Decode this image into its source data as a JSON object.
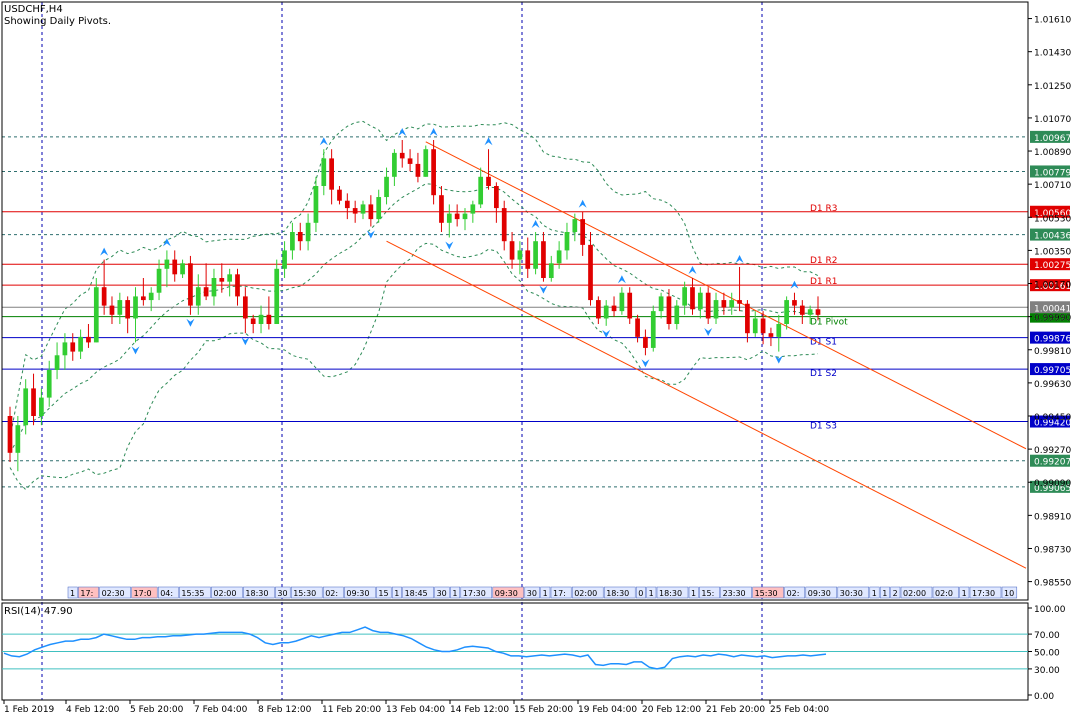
{
  "window": {
    "symbol_title": "USDCHF,H4",
    "subtitle": "Showing Daily Pivots."
  },
  "colors": {
    "background": "#ffffff",
    "axis": "#000000",
    "bull": "#32cd32",
    "bear": "#e00000",
    "resistance": "#e00000",
    "pivot": "#008000",
    "support": "#0000c8",
    "bollinger": "#2e8b57",
    "channel": "#ff4500",
    "fractal": "#1e90ff",
    "grid": "#0000b0",
    "rsi": "#1e90ff",
    "rsi_levels": "#40c0c0"
  },
  "chart_data": [
    {
      "type": "candlestick",
      "title": "USDCHF,H4",
      "ylim": [
        0.9845,
        1.017
      ],
      "y_ticks": [
        "1.01610",
        "1.01430",
        "1.01250",
        "1.01070",
        "1.00890",
        "1.00710",
        "1.00530",
        "1.00350",
        "1.00170",
        "0.99990",
        "0.99810",
        "0.99630",
        "0.99450",
        "0.99270",
        "0.99090",
        "0.98910",
        "0.98730",
        "0.98550"
      ],
      "x_ticks": [
        "1 Feb 2019",
        "4 Feb 12:00",
        "5 Feb 20:00",
        "7 Feb 04:00",
        "8 Feb 12:00",
        "11 Feb 20:00",
        "13 Feb 04:00",
        "14 Feb 12:00",
        "15 Feb 20:00",
        "19 Feb 04:00",
        "20 Feb 12:00",
        "21 Feb 20:00",
        "25 Feb 04:00"
      ],
      "grid": "dotted",
      "price_levels": [
        {
          "name": "D1 R3",
          "price": "1.00560",
          "kind": "resistance"
        },
        {
          "name": "D1 R2",
          "price": "1.00275",
          "kind": "resistance"
        },
        {
          "name": "D1 R1",
          "price": "1.00161",
          "kind": "resistance"
        },
        {
          "name": "D1 Pivot",
          "price": "0.99990",
          "kind": "pivot"
        },
        {
          "name": "D1 S1",
          "price": "0.99876",
          "kind": "support"
        },
        {
          "name": "D1 S2",
          "price": "0.99705",
          "kind": "support"
        },
        {
          "name": "D1 S3",
          "price": "0.99420",
          "kind": "support"
        }
      ],
      "other_levels": [
        "1.00967",
        "1.00779",
        "1.00436",
        "0.99207",
        "0.99065"
      ],
      "current_price": "1.00041",
      "ohlc": [
        [
          0.9945,
          0.995,
          0.992,
          0.9925
        ],
        [
          0.9925,
          0.9945,
          0.9915,
          0.994
        ],
        [
          0.994,
          0.9965,
          0.9935,
          0.996
        ],
        [
          0.996,
          0.9968,
          0.994,
          0.9945
        ],
        [
          0.9945,
          0.996,
          0.994,
          0.9955
        ],
        [
          0.9955,
          0.9975,
          0.995,
          0.997
        ],
        [
          0.997,
          0.9985,
          0.9965,
          0.9978
        ],
        [
          0.9978,
          0.999,
          0.997,
          0.9985
        ],
        [
          0.9985,
          0.999,
          0.9975,
          0.998
        ],
        [
          0.998,
          0.9992,
          0.9976,
          0.9988
        ],
        [
          0.9988,
          0.9995,
          0.9982,
          0.9985
        ],
        [
          0.9985,
          1.002,
          0.9985,
          1.0015
        ],
        [
          1.0015,
          1.003,
          1.0,
          1.0005
        ],
        [
          1.0005,
          1.001,
          0.9995,
          1.0
        ],
        [
          1.0,
          1.0012,
          0.9995,
          1.0008
        ],
        [
          1.0008,
          1.001,
          0.999,
          0.9998
        ],
        [
          0.9998,
          1.0015,
          0.9985,
          1.001
        ],
        [
          1.001,
          1.002,
          1.0005,
          1.0008
        ],
        [
          1.0008,
          1.0015,
          1.0002,
          1.0012
        ],
        [
          1.0012,
          1.003,
          1.0008,
          1.0025
        ],
        [
          1.0025,
          1.0035,
          1.0015,
          1.003
        ],
        [
          1.003,
          1.0035,
          1.0018,
          1.0022
        ],
        [
          1.0022,
          1.003,
          1.002,
          1.0028
        ],
        [
          1.0028,
          1.0032,
          1.0,
          1.0005
        ],
        [
          1.0005,
          1.0022,
          1.0,
          1.0015
        ],
        [
          1.0015,
          1.0028,
          1.0008,
          1.001
        ],
        [
          1.001,
          1.0025,
          1.0005,
          1.002
        ],
        [
          1.002,
          1.0028,
          1.0012,
          1.0018
        ],
        [
          1.0018,
          1.0025,
          1.001,
          1.0022
        ],
        [
          1.0022,
          1.0025,
          1.0005,
          1.001
        ],
        [
          1.001,
          1.0015,
          0.999,
          0.9998
        ],
        [
          0.9998,
          1.0,
          0.999,
          0.9995
        ],
        [
          0.9995,
          1.0005,
          0.999,
          1.0
        ],
        [
          1.0,
          1.001,
          0.9992,
          0.9995
        ],
        [
          0.9995,
          1.003,
          0.9995,
          1.0025
        ],
        [
          1.0025,
          1.004,
          1.002,
          1.0035
        ],
        [
          1.0035,
          1.005,
          1.003,
          1.0045
        ],
        [
          1.0045,
          1.005,
          1.0035,
          1.004
        ],
        [
          1.004,
          1.0055,
          1.0035,
          1.005
        ],
        [
          1.005,
          1.0075,
          1.0045,
          1.007
        ],
        [
          1.007,
          1.009,
          1.0065,
          1.0085
        ],
        [
          1.0085,
          1.009,
          1.006,
          1.0068
        ],
        [
          1.0068,
          1.007,
          1.006,
          1.0062
        ],
        [
          1.0062,
          1.0066,
          1.0052,
          1.0058
        ],
        [
          1.0058,
          1.0062,
          1.005,
          1.0055
        ],
        [
          1.0055,
          1.0062,
          1.0052,
          1.006
        ],
        [
          1.006,
          1.0065,
          1.0048,
          1.0052
        ],
        [
          1.0052,
          1.0068,
          1.005,
          1.0064
        ],
        [
          1.0064,
          1.008,
          1.006,
          1.0075
        ],
        [
          1.0075,
          1.009,
          1.007,
          1.0088
        ],
        [
          1.0088,
          1.0095,
          1.008,
          1.0085
        ],
        [
          1.0085,
          1.009,
          1.0078,
          1.0082
        ],
        [
          1.0082,
          1.0088,
          1.0072,
          1.0075
        ],
        [
          1.0075,
          1.0092,
          1.0075,
          1.009
        ],
        [
          1.009,
          1.0095,
          1.006,
          1.0065
        ],
        [
          1.0065,
          1.007,
          1.0045,
          1.005
        ],
        [
          1.005,
          1.006,
          1.0042,
          1.0055
        ],
        [
          1.0055,
          1.006,
          1.0048,
          1.0052
        ],
        [
          1.0052,
          1.0058,
          1.0046,
          1.0055
        ],
        [
          1.0055,
          1.0062,
          1.005,
          1.006
        ],
        [
          1.006,
          1.008,
          1.0058,
          1.0075
        ],
        [
          1.0075,
          1.009,
          1.0068,
          1.007
        ],
        [
          1.007,
          1.0072,
          1.005,
          1.0058
        ],
        [
          1.0058,
          1.0062,
          1.0035,
          1.004
        ],
        [
          1.004,
          1.0045,
          1.0025,
          1.003
        ],
        [
          1.003,
          1.004,
          1.0022,
          1.0035
        ],
        [
          1.0035,
          1.0042,
          1.002,
          1.0025
        ],
        [
          1.0025,
          1.0045,
          1.0022,
          1.004
        ],
        [
          1.004,
          1.0045,
          1.0018,
          1.002
        ],
        [
          1.002,
          1.0032,
          1.0018,
          1.0028
        ],
        [
          1.0028,
          1.004,
          1.0025,
          1.0035
        ],
        [
          1.0035,
          1.005,
          1.003,
          1.0045
        ],
        [
          1.0045,
          1.0055,
          1.004,
          1.0052
        ],
        [
          1.0052,
          1.0056,
          1.0032,
          1.0038
        ],
        [
          1.0038,
          1.0045,
          1.0005,
          1.0008
        ],
        [
          1.0008,
          1.001,
          0.9995,
          0.9998
        ],
        [
          0.9998,
          1.0008,
          0.9994,
          1.0005
        ],
        [
          1.0005,
          1.001,
          0.9999,
          1.0002
        ],
        [
          1.0002,
          1.0015,
          1.0,
          1.0012
        ],
        [
          1.0012,
          1.0015,
          0.9995,
          0.9998
        ],
        [
          0.9998,
          1.0,
          0.9985,
          0.9988
        ],
        [
          0.9988,
          0.9992,
          0.9978,
          0.9982
        ],
        [
          0.9982,
          1.0005,
          0.998,
          1.0002
        ],
        [
          1.0002,
          1.0012,
          0.9998,
          1.001
        ],
        [
          1.001,
          1.0014,
          0.9992,
          0.9995
        ],
        [
          0.9995,
          1.0008,
          0.9992,
          1.0005
        ],
        [
          1.0005,
          1.0018,
          1.0,
          1.0015
        ],
        [
          1.0015,
          1.002,
          1.0,
          1.0003
        ],
        [
          1.0003,
          1.0015,
          0.9998,
          1.0012
        ],
        [
          1.0012,
          1.0015,
          0.9995,
          0.9998
        ],
        [
          0.9998,
          1.0012,
          0.9995,
          1.0008
        ],
        [
          1.0008,
          1.0012,
          1.0,
          1.0004
        ],
        [
          1.0004,
          1.0012,
          1.0,
          1.0008
        ],
        [
          1.0008,
          1.0026,
          1.0002,
          1.0006
        ],
        [
          1.0006,
          1.0008,
          0.9985,
          0.999
        ],
        [
          0.999,
          1.0002,
          0.9988,
          0.9998
        ],
        [
          0.9998,
          1.0002,
          0.9984,
          0.999
        ],
        [
          0.999,
          0.9993,
          0.9983,
          0.9988
        ],
        [
          0.9988,
          1.0,
          0.998,
          0.9995
        ],
        [
          0.9995,
          1.001,
          0.9992,
          1.0008
        ],
        [
          1.0008,
          1.0012,
          1.0,
          1.0005
        ],
        [
          1.0005,
          1.0008,
          0.9995,
          1.0
        ],
        [
          1.0,
          1.0005,
          0.9995,
          1.0003
        ],
        [
          1.0003,
          1.001,
          0.9997,
          1.0
        ]
      ],
      "annotations": [
        "D1 R3",
        "D1 R2",
        "D1 R1",
        "D1 Pivot",
        "D1 S1",
        "D1 S2",
        "D1 S3"
      ]
    },
    {
      "type": "line",
      "title": "RSI(14) 47.90",
      "ylim": [
        0,
        100
      ],
      "y_ticks": [
        "100.00",
        "70.00",
        "50.00",
        "30.00",
        "0.00"
      ],
      "levels": [
        70,
        50,
        30
      ],
      "series": [
        {
          "name": "RSI(14)",
          "values": [
            48,
            45,
            44,
            47,
            52,
            55,
            58,
            60,
            62,
            62,
            64,
            64,
            66,
            70,
            68,
            66,
            64,
            64,
            66,
            66,
            67,
            67,
            68,
            68,
            69,
            70,
            70,
            71,
            72,
            72,
            72,
            72,
            70,
            66,
            60,
            58,
            60,
            60,
            62,
            65,
            68,
            66,
            68,
            70,
            72,
            72,
            75,
            78,
            74,
            72,
            72,
            70,
            68,
            65,
            60,
            55,
            52,
            50,
            50,
            52,
            55,
            56,
            55,
            54,
            50,
            48,
            45,
            45,
            44,
            45,
            46,
            45,
            46,
            47,
            46,
            44,
            46,
            35,
            34,
            36,
            36,
            35,
            38,
            38,
            32,
            30,
            32,
            42,
            44,
            45,
            44,
            46,
            45,
            47,
            46,
            44,
            46,
            45,
            44,
            45,
            43,
            44,
            45,
            45,
            46,
            45,
            46,
            47
          ]
        }
      ]
    }
  ],
  "time_labels": [
    "1",
    "17:",
    "02:30",
    "17:0",
    "04:",
    "15:35",
    "02:00",
    "18:30",
    "30",
    "15:30",
    "02:",
    "09:30",
    "15",
    "1",
    "18:45",
    "30",
    "1",
    "17:30",
    "09:30",
    "30",
    "1",
    "17:",
    "02:00",
    "18:30",
    "0",
    "1",
    "18:30",
    "1",
    "15:",
    "23:30",
    "15:30",
    "02:",
    "09:30",
    "30:30",
    "1",
    "1",
    "2",
    "02:00",
    "02:0",
    "1",
    "17:30",
    "10",
    "18:30"
  ],
  "current_price_label": "1.00041"
}
